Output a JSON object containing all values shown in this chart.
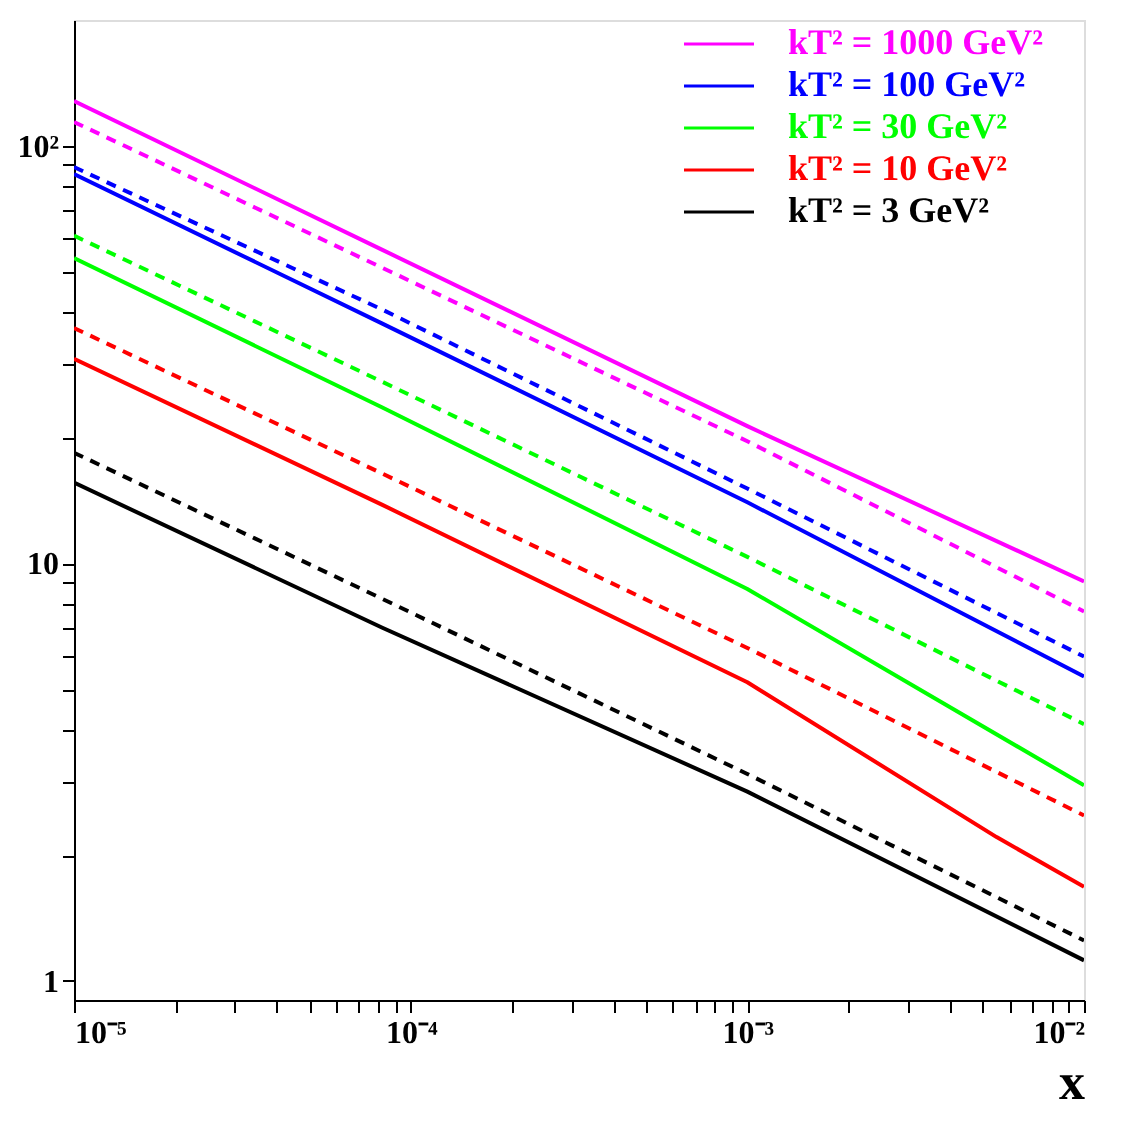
{
  "chart_data": {
    "type": "line",
    "xlabel": "x",
    "log": "xy",
    "grid": false,
    "legend": "top right",
    "marker": "none",
    "xlim": [
      1e-05,
      0.01
    ],
    "ylim": [
      0.9,
      200
    ],
    "xticks": [
      {
        "value": 1e-05,
        "label": "10⁻⁵"
      },
      {
        "value": 2e-05,
        "label": null
      },
      {
        "value": 3e-05,
        "label": null
      },
      {
        "value": 4e-05,
        "label": null
      },
      {
        "value": 5e-05,
        "label": null
      },
      {
        "value": 6e-05,
        "label": null
      },
      {
        "value": 7e-05,
        "label": null
      },
      {
        "value": 8e-05,
        "label": null
      },
      {
        "value": 9e-05,
        "label": null
      },
      {
        "value": 0.0001,
        "label": "10⁻⁴"
      },
      {
        "value": 0.0002,
        "label": null
      },
      {
        "value": 0.0003,
        "label": null
      },
      {
        "value": 0.0004,
        "label": null
      },
      {
        "value": 0.0005,
        "label": null
      },
      {
        "value": 0.0006,
        "label": null
      },
      {
        "value": 0.0007,
        "label": null
      },
      {
        "value": 0.0008,
        "label": null
      },
      {
        "value": 0.0009,
        "label": null
      },
      {
        "value": 0.001,
        "label": "10⁻³"
      },
      {
        "value": 0.002,
        "label": null
      },
      {
        "value": 0.003,
        "label": null
      },
      {
        "value": 0.004,
        "label": null
      },
      {
        "value": 0.005,
        "label": null
      },
      {
        "value": 0.006,
        "label": null
      },
      {
        "value": 0.007,
        "label": null
      },
      {
        "value": 0.008,
        "label": null
      },
      {
        "value": 0.009,
        "label": null
      },
      {
        "value": 0.01,
        "label": "10⁻²"
      }
    ],
    "yticks": [
      1,
      {
        "value": 2,
        "label": null
      },
      {
        "value": 3,
        "label": null
      },
      {
        "value": 4,
        "label": null
      },
      {
        "value": 5,
        "label": null
      },
      {
        "value": 6,
        "label": null
      },
      {
        "value": 7,
        "label": null
      },
      {
        "value": 8,
        "label": null
      },
      {
        "value": 9,
        "label": null
      },
      10,
      {
        "value": 20,
        "label": null
      },
      {
        "value": 30,
        "label": null
      },
      {
        "value": 40,
        "label": null
      },
      {
        "value": 50,
        "label": null
      },
      {
        "value": 60,
        "label": null
      },
      {
        "value": 70,
        "label": null
      },
      {
        "value": 80,
        "label": null
      },
      {
        "value": 90,
        "label": null
      },
      {
        "value": 100,
        "label": "10²"
      }
    ],
    "series": [
      {
        "name": "kT² = 1000 GeV²",
        "color": "#ff00ff",
        "line_style": "solid",
        "x": [
          1e-05,
          8.24e-05,
          0.001,
          0.01
        ],
        "values": [
          128,
          56.3,
          21.3,
          9.05
        ]
      },
      {
        "color": "#ff00ff",
        "line_style": "dashed",
        "x": [
          1e-05,
          8.24e-05,
          0.001,
          0.01
        ],
        "values": [
          114,
          51.0,
          19.6,
          7.67
        ]
      },
      {
        "name": "kT² = 100 GeV²",
        "color": "#0000ff",
        "line_style": "solid",
        "x": [
          1e-05,
          8.24e-05,
          0.001,
          0.01
        ],
        "values": [
          85.5,
          37.5,
          14.0,
          5.36
        ]
      },
      {
        "color": "#0000ff",
        "line_style": "dashed",
        "x": [
          1e-05,
          8.24e-05,
          0.001,
          0.01
        ],
        "values": [
          88.9,
          40.5,
          15.1,
          5.98
        ]
      },
      {
        "name": "kT² = 30 GeV²",
        "color": "#00ff00",
        "line_style": "solid",
        "x": [
          1e-05,
          8.24e-05,
          0.001,
          0.01
        ],
        "values": [
          53.8,
          23.6,
          8.68,
          2.94
        ]
      },
      {
        "color": "#00ff00",
        "line_style": "dashed",
        "x": [
          1e-05,
          8.24e-05,
          0.001,
          0.01
        ],
        "values": [
          60.9,
          27.2,
          10.36,
          4.12
        ]
      },
      {
        "name": "kT² = 10 GeV²",
        "color": "#ff0000",
        "line_style": "solid",
        "x": [
          1e-05,
          8.24e-05,
          0.001,
          0.0055,
          0.01
        ],
        "values": [
          30.9,
          13.8,
          5.19,
          2.21,
          1.68
        ]
      },
      {
        "color": "#ff0000",
        "line_style": "dashed",
        "x": [
          1e-05,
          8.24e-05,
          0.001,
          0.01
        ],
        "values": [
          36.6,
          16.4,
          6.27,
          2.49
        ]
      },
      {
        "name": "kT² = 3 GeV²",
        "color": "#000000",
        "line_style": "solid",
        "x": [
          1e-05,
          8.24e-05,
          0.001,
          0.01
        ],
        "values": [
          15.6,
          7.01,
          2.84,
          1.12
        ]
      },
      {
        "color": "#000000",
        "line_style": "dashed",
        "x": [
          1e-05,
          8.24e-05,
          0.001,
          0.01
        ],
        "values": [
          18.4,
          8.22,
          3.13,
          1.25
        ]
      }
    ]
  }
}
